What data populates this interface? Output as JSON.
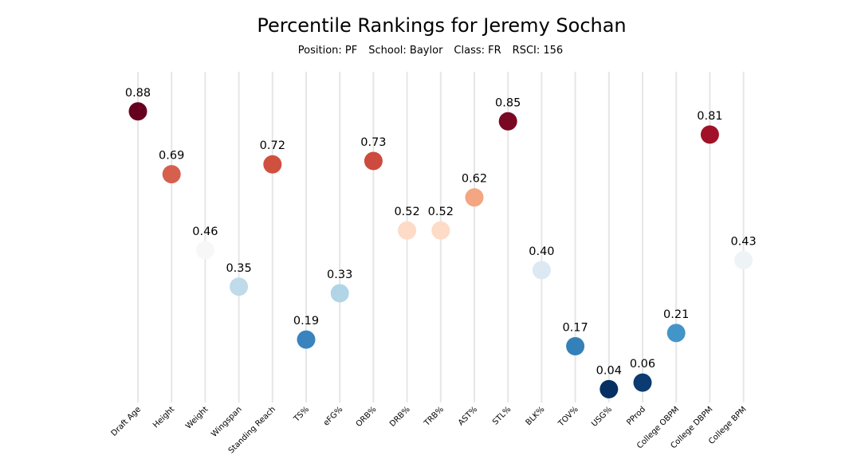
{
  "header": {
    "title": "Percentile Rankings for Jeremy Sochan",
    "position": "Position: PF",
    "school": "School: Baylor",
    "class": "Class: FR",
    "rsci": "RSCI: 156"
  },
  "chart_data": {
    "type": "scatter",
    "title": "Percentile Rankings for Jeremy Sochan",
    "xlabel": "",
    "ylabel": "",
    "ylim": [
      0,
      1
    ],
    "grid": "vertical lines only",
    "colormap": "RdBu_r",
    "categories": [
      "Draft Age",
      "Height",
      "Weight",
      "Wingspan",
      "Standing Reach",
      "TS%",
      "eFG%",
      "ORB%",
      "DRB%",
      "TRB%",
      "AST%",
      "STL%",
      "BLK%",
      "TOV%",
      "USG%",
      "PProd",
      "College OBPM",
      "College DBPM",
      "College BPM"
    ],
    "values": [
      0.88,
      0.69,
      0.46,
      0.35,
      0.72,
      0.19,
      0.33,
      0.73,
      0.52,
      0.52,
      0.62,
      0.85,
      0.4,
      0.17,
      0.04,
      0.06,
      0.21,
      0.81,
      0.43
    ],
    "value_labels": [
      "0.88",
      "0.69",
      "0.46",
      "0.35",
      "0.72",
      "0.19",
      "0.33",
      "0.73",
      "0.52",
      "0.52",
      "0.62",
      "0.85",
      "0.40",
      "0.17",
      "0.04",
      "0.06",
      "0.21",
      "0.81",
      "0.43"
    ],
    "colors": [
      "#67001f",
      "#d6604d",
      "#f7f7f7",
      "#bfdaea",
      "#d0503f",
      "#3984bf",
      "#b1d5e7",
      "#cc4a3e",
      "#fddbc7",
      "#fddbc7",
      "#f4a582",
      "#7a0822",
      "#dce9f2",
      "#3480b9",
      "#053061",
      "#0b3b70",
      "#4395c7",
      "#a11228",
      "#eef3f6"
    ]
  }
}
